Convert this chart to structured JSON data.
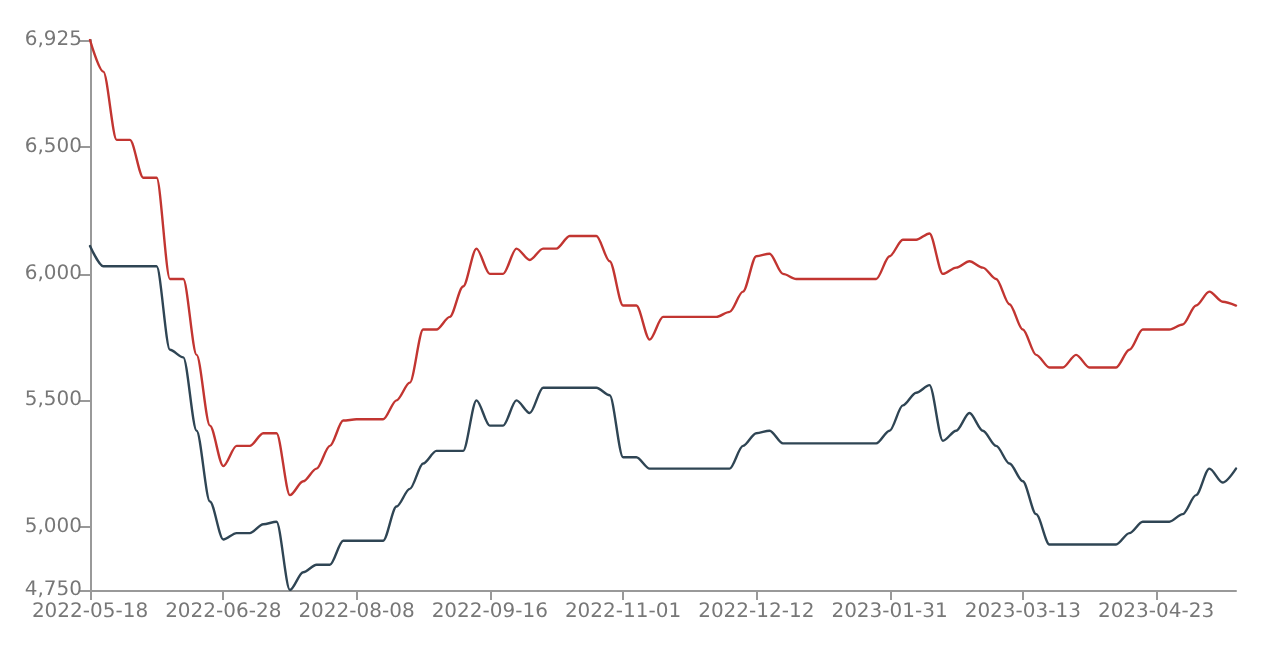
{
  "chart_data": {
    "type": "line",
    "categories": [
      "2022-05-18",
      null,
      null,
      null,
      null,
      null,
      null,
      null,
      null,
      null,
      "2022-06-28",
      null,
      null,
      null,
      null,
      null,
      null,
      null,
      null,
      null,
      "2022-08-08",
      null,
      null,
      null,
      null,
      null,
      null,
      null,
      null,
      null,
      "2022-09-16",
      null,
      null,
      null,
      null,
      null,
      null,
      null,
      null,
      null,
      "2022-11-01",
      null,
      null,
      null,
      null,
      null,
      null,
      null,
      null,
      null,
      "2022-12-12",
      null,
      null,
      null,
      null,
      null,
      null,
      null,
      null,
      null,
      "2023-01-31",
      null,
      null,
      null,
      null,
      null,
      null,
      null,
      null,
      null,
      "2023-03-13",
      null,
      null,
      null,
      null,
      null,
      null,
      null,
      null,
      null,
      "2023-04-23",
      null,
      null,
      null,
      null,
      null,
      null
    ],
    "series": [
      {
        "color": "#c23531",
        "values": [
          6925,
          6800,
          6530,
          6530,
          6380,
          6380,
          5980,
          5980,
          5680,
          5400,
          5240,
          5320,
          5320,
          5370,
          5370,
          5125,
          5180,
          5230,
          5320,
          5420,
          5425,
          5425,
          5425,
          5500,
          5570,
          5780,
          5780,
          5830,
          5950,
          6100,
          6000,
          6000,
          6100,
          6055,
          6100,
          6100,
          6150,
          6150,
          6150,
          6050,
          5875,
          5875,
          5740,
          5830,
          5830,
          5830,
          5830,
          5830,
          5850,
          5930,
          6070,
          6080,
          6000,
          5980,
          5980,
          5980,
          5980,
          5980,
          5980,
          5980,
          6070,
          6135,
          6135,
          6160,
          6000,
          6025,
          6050,
          6025,
          5980,
          5880,
          5780,
          5680,
          5630,
          5630,
          5680,
          5630,
          5630,
          5630,
          5700,
          5780,
          5780,
          5780,
          5800,
          5875,
          5930,
          5890,
          5875
        ]
      },
      {
        "color": "#2f4554",
        "values": [
          6110,
          6030,
          6030,
          6030,
          6030,
          6030,
          5700,
          5670,
          5380,
          5100,
          4950,
          4975,
          4975,
          5010,
          5020,
          4750,
          4820,
          4850,
          4850,
          4945,
          4945,
          4945,
          4945,
          5080,
          5150,
          5250,
          5300,
          5300,
          5300,
          5500,
          5400,
          5400,
          5500,
          5450,
          5550,
          5550,
          5550,
          5550,
          5550,
          5520,
          5275,
          5275,
          5230,
          5230,
          5230,
          5230,
          5230,
          5230,
          5230,
          5320,
          5370,
          5380,
          5330,
          5330,
          5330,
          5330,
          5330,
          5330,
          5330,
          5330,
          5380,
          5480,
          5530,
          5560,
          5340,
          5380,
          5450,
          5380,
          5320,
          5250,
          5180,
          5050,
          4930,
          4930,
          4930,
          4930,
          4930,
          4930,
          4975,
          5020,
          5020,
          5020,
          5050,
          5125,
          5230,
          5175,
          5230
        ]
      }
    ],
    "ylim": [
      4750,
      6925
    ],
    "yticks": [
      {
        "value": 4750,
        "label": "4,750"
      },
      {
        "value": 5000,
        "label": "5,000"
      },
      {
        "value": 5500,
        "label": "5,500"
      },
      {
        "value": 6000,
        "label": "6,000"
      },
      {
        "value": 6500,
        "label": "6,500"
      },
      {
        "value": 6925,
        "label": "6,925"
      }
    ],
    "grid": false,
    "marker": "none",
    "line_style": "solid"
  }
}
